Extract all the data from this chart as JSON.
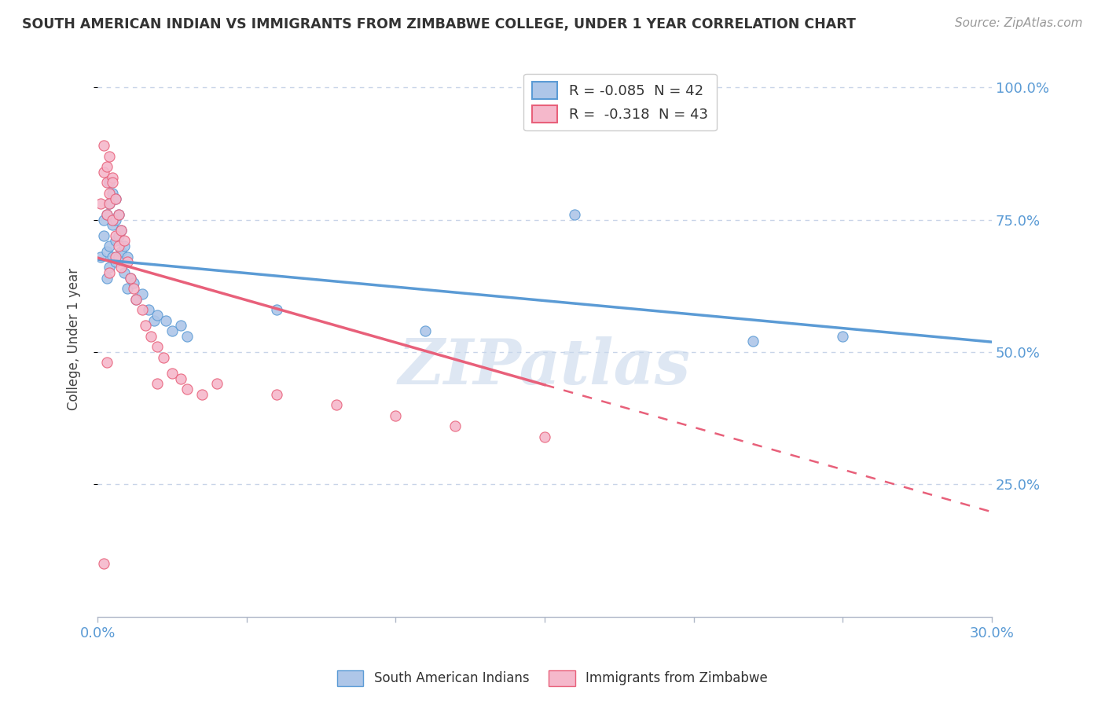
{
  "title": "SOUTH AMERICAN INDIAN VS IMMIGRANTS FROM ZIMBABWE COLLEGE, UNDER 1 YEAR CORRELATION CHART",
  "source": "Source: ZipAtlas.com",
  "ylabel": "College, Under 1 year",
  "xmin": 0.0,
  "xmax": 0.3,
  "ymin": 0.0,
  "ymax": 1.05,
  "yticks": [
    0.25,
    0.5,
    0.75,
    1.0
  ],
  "ytick_labels": [
    "25.0%",
    "50.0%",
    "75.0%",
    "100.0%"
  ],
  "xticks": [
    0.0,
    0.05,
    0.1,
    0.15,
    0.2,
    0.25,
    0.3
  ],
  "xtick_labels": [
    "0.0%",
    "",
    "",
    "",
    "",
    "",
    "30.0%"
  ],
  "legend_r1": "R = -0.085  N = 42",
  "legend_r2": "R =  -0.318  N = 43",
  "series1_color": "#aec6e8",
  "series2_color": "#f5b8cb",
  "line1_color": "#5b9bd5",
  "line2_color": "#e8607a",
  "watermark": "ZIPatlas",
  "background_color": "#ffffff",
  "grid_color": "#c8d4e8",
  "series1_x": [
    0.001,
    0.002,
    0.002,
    0.003,
    0.003,
    0.003,
    0.004,
    0.004,
    0.004,
    0.004,
    0.005,
    0.005,
    0.005,
    0.006,
    0.006,
    0.006,
    0.006,
    0.007,
    0.007,
    0.007,
    0.008,
    0.008,
    0.009,
    0.009,
    0.01,
    0.01,
    0.011,
    0.012,
    0.013,
    0.015,
    0.017,
    0.019,
    0.02,
    0.023,
    0.025,
    0.028,
    0.03,
    0.16,
    0.22,
    0.06,
    0.11,
    0.25
  ],
  "series1_y": [
    0.68,
    0.75,
    0.72,
    0.76,
    0.69,
    0.64,
    0.82,
    0.78,
    0.7,
    0.66,
    0.8,
    0.74,
    0.68,
    0.79,
    0.75,
    0.71,
    0.67,
    0.76,
    0.72,
    0.68,
    0.73,
    0.69,
    0.7,
    0.65,
    0.68,
    0.62,
    0.64,
    0.63,
    0.6,
    0.61,
    0.58,
    0.56,
    0.57,
    0.56,
    0.54,
    0.55,
    0.53,
    0.76,
    0.52,
    0.58,
    0.54,
    0.53
  ],
  "series2_x": [
    0.001,
    0.002,
    0.002,
    0.003,
    0.003,
    0.003,
    0.004,
    0.004,
    0.004,
    0.005,
    0.005,
    0.005,
    0.006,
    0.006,
    0.006,
    0.007,
    0.007,
    0.008,
    0.008,
    0.009,
    0.01,
    0.011,
    0.012,
    0.013,
    0.015,
    0.016,
    0.018,
    0.02,
    0.022,
    0.025,
    0.028,
    0.03,
    0.035,
    0.04,
    0.06,
    0.08,
    0.1,
    0.12,
    0.15,
    0.004,
    0.002,
    0.003,
    0.02
  ],
  "series2_y": [
    0.78,
    0.84,
    0.89,
    0.85,
    0.82,
    0.76,
    0.8,
    0.87,
    0.78,
    0.83,
    0.75,
    0.82,
    0.79,
    0.72,
    0.68,
    0.76,
    0.7,
    0.73,
    0.66,
    0.71,
    0.67,
    0.64,
    0.62,
    0.6,
    0.58,
    0.55,
    0.53,
    0.51,
    0.49,
    0.46,
    0.45,
    0.43,
    0.42,
    0.44,
    0.42,
    0.4,
    0.38,
    0.36,
    0.34,
    0.65,
    0.1,
    0.48,
    0.44
  ],
  "line1_intercept": 0.675,
  "line1_slope": -0.52,
  "line2_intercept": 0.678,
  "line2_slope": -1.6,
  "line2_solid_xmax": 0.15,
  "line_xmin": 0.0,
  "line_xmax": 0.3
}
